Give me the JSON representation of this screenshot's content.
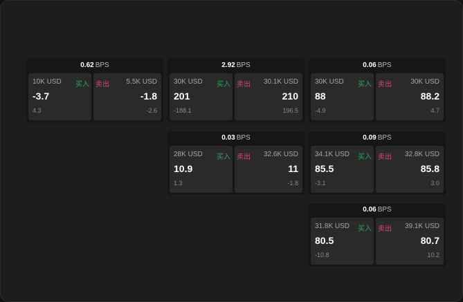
{
  "labels": {
    "buy": "买入",
    "sell": "卖出",
    "unit": "BPS"
  },
  "colors": {
    "buy": "#2ea55a",
    "sell": "#d8466e",
    "background": "#1d1d1d"
  },
  "quotes": [
    {
      "bps": "0.62",
      "buy": {
        "size": "10K USD",
        "price": "-3.7",
        "change": "4.3"
      },
      "sell": {
        "size": "5.5K USD",
        "price": "-1.8",
        "change": "-2.6"
      }
    },
    {
      "bps": "2.92",
      "buy": {
        "size": "30K USD",
        "price": "201",
        "change": "-188.1"
      },
      "sell": {
        "size": "30.1K USD",
        "price": "210",
        "change": "196.5"
      }
    },
    {
      "bps": "0.06",
      "buy": {
        "size": "30K USD",
        "price": "88",
        "change": "-4.9"
      },
      "sell": {
        "size": "30K USD",
        "price": "88.2",
        "change": "4.7"
      }
    },
    {
      "bps": "0.03",
      "buy": {
        "size": "28K USD",
        "price": "10.9",
        "change": "1.3"
      },
      "sell": {
        "size": "32.6K USD",
        "price": "11",
        "change": "-1.8"
      }
    },
    {
      "bps": "0.09",
      "buy": {
        "size": "34.1K USD",
        "price": "85.5",
        "change": "-3.1"
      },
      "sell": {
        "size": "32.8K USD",
        "price": "85.8",
        "change": "3.0"
      }
    },
    {
      "bps": "0.06",
      "buy": {
        "size": "31.8K USD",
        "price": "80.5",
        "change": "-10.8"
      },
      "sell": {
        "size": "39.1K USD",
        "price": "80.7",
        "change": "10.2"
      }
    }
  ]
}
